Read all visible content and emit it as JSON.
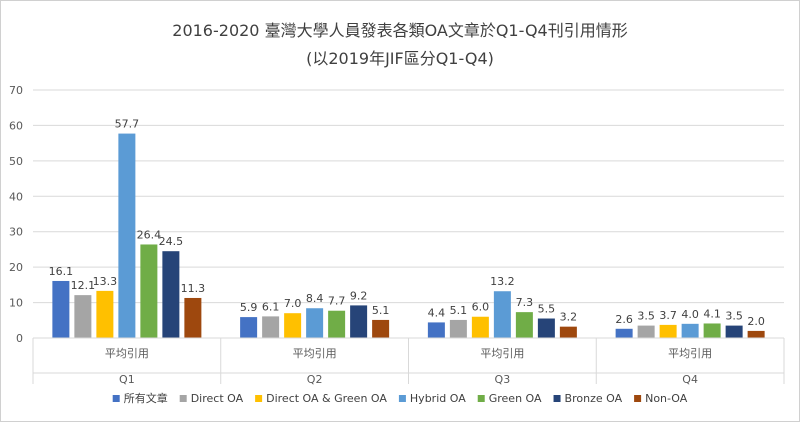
{
  "chart_data": {
    "type": "bar",
    "title": "2016-2020 臺灣大學人員發表各類OA文章於Q1-Q4刊引用情形",
    "subtitle": "(以2019年JIF區分Q1-Q4)",
    "categories": [
      "Q1",
      "Q2",
      "Q3",
      "Q4"
    ],
    "sub_category_label": "平均引用",
    "ylim": [
      0,
      70
    ],
    "yticks": [
      0,
      10,
      20,
      30,
      40,
      50,
      60,
      70
    ],
    "grid": true,
    "legend_position": "bottom",
    "series": [
      {
        "name": "所有文章",
        "color": "#4472c4",
        "values": [
          16.1,
          5.9,
          4.4,
          2.6
        ]
      },
      {
        "name": "Direct OA",
        "color": "#a5a5a5",
        "values": [
          12.1,
          6.1,
          5.1,
          3.5
        ]
      },
      {
        "name": "Direct OA & Green OA",
        "color": "#ffc000",
        "values": [
          13.3,
          7.0,
          6.0,
          3.7
        ]
      },
      {
        "name": "Hybrid OA",
        "color": "#5b9bd5",
        "values": [
          57.7,
          8.4,
          13.2,
          4.0
        ]
      },
      {
        "name": "Green OA",
        "color": "#70ad47",
        "values": [
          26.4,
          7.7,
          7.3,
          4.1
        ]
      },
      {
        "name": "Bronze OA",
        "color": "#264478",
        "values": [
          24.5,
          9.2,
          5.5,
          3.5
        ]
      },
      {
        "name": "Non-OA",
        "color": "#9e480e",
        "values": [
          11.3,
          5.1,
          3.2,
          2.0
        ]
      }
    ]
  }
}
